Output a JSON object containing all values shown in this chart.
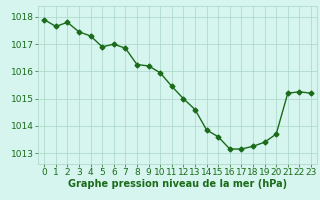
{
  "x": [
    0,
    1,
    2,
    3,
    4,
    5,
    6,
    7,
    8,
    9,
    10,
    11,
    12,
    13,
    14,
    15,
    16,
    17,
    18,
    19,
    20,
    21,
    22,
    23
  ],
  "y": [
    1017.9,
    1017.65,
    1017.8,
    1017.45,
    1017.3,
    1016.9,
    1017.0,
    1016.85,
    1016.25,
    1016.2,
    1015.95,
    1015.45,
    1015.0,
    1014.6,
    1013.85,
    1013.6,
    1013.15,
    1013.15,
    1013.25,
    1013.4,
    1013.7,
    1015.2,
    1015.25,
    1015.2
  ],
  "line_color": "#1a6b1a",
  "marker": "D",
  "marker_size": 2.5,
  "line_width": 1.0,
  "bg_color": "#d6f5ef",
  "grid_color": "#aad5c8",
  "xlabel": "Graphe pression niveau de la mer (hPa)",
  "xlabel_color": "#1a6b1a",
  "xlabel_fontsize": 7.0,
  "yticks": [
    1013,
    1014,
    1015,
    1016,
    1017,
    1018
  ],
  "xticks": [
    0,
    1,
    2,
    3,
    4,
    5,
    6,
    7,
    8,
    9,
    10,
    11,
    12,
    13,
    14,
    15,
    16,
    17,
    18,
    19,
    20,
    21,
    22,
    23
  ],
  "ylim": [
    1012.6,
    1018.4
  ],
  "xlim": [
    -0.5,
    23.5
  ],
  "tick_color": "#1a6b1a",
  "tick_fontsize": 6.5
}
